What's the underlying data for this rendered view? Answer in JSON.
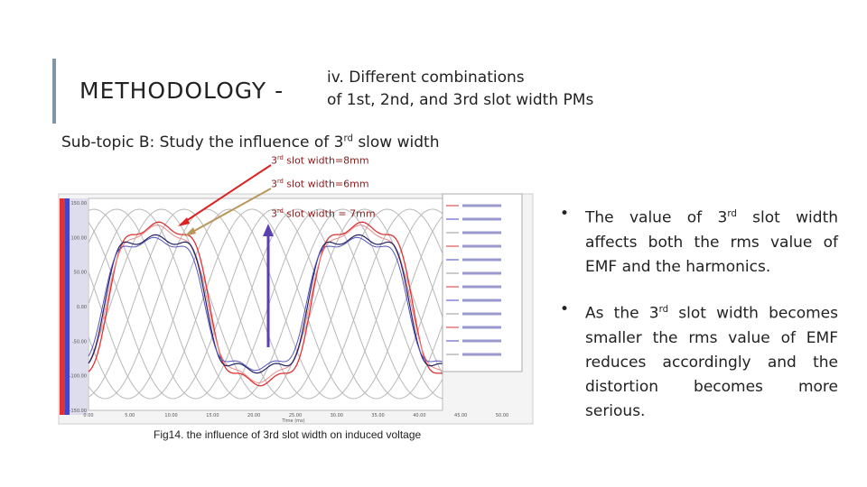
{
  "header": {
    "title": "METHODOLOGY -",
    "subtitle_lines": [
      "iv. Different combinations",
      "of 1st, 2nd, and 3rd slot width PMs"
    ]
  },
  "subtopic": {
    "before": "Sub-topic B: Study the influence of 3",
    "sup": "rd",
    "after": " slow width"
  },
  "annotations": [
    {
      "before": "3",
      "sup": "rd",
      "after": " slot width=8mm"
    },
    {
      "before": "3",
      "sup": "rd",
      "after": " slot width=6mm"
    },
    {
      "before": "3",
      "sup": "rd",
      "after": " slot width = 7mm"
    }
  ],
  "figure": {
    "yticks": [
      "150.00",
      "100.00",
      "50.00",
      "0.00",
      "-50.00",
      "-100.00",
      "-150.00"
    ],
    "xticks": [
      "0.00",
      "5.00",
      "10.00",
      "15.00",
      "20.00",
      "25.00",
      "30.00",
      "35.00",
      "40.00",
      "45.00",
      "50.00"
    ],
    "xlabel": "Time (ms)",
    "caption": "Fig14. the influence of 3rd slot width on induced voltage"
  },
  "bullets": [
    {
      "before": "The value of 3",
      "sup": "rd",
      "after": " slot width affects both the rms value of EMF and the harmonics."
    },
    {
      "before": "As the 3",
      "sup": "rd",
      "after": " slot width becomes smaller the rms value of EMF reduces accordingly and the distortion becomes more serious."
    }
  ]
}
